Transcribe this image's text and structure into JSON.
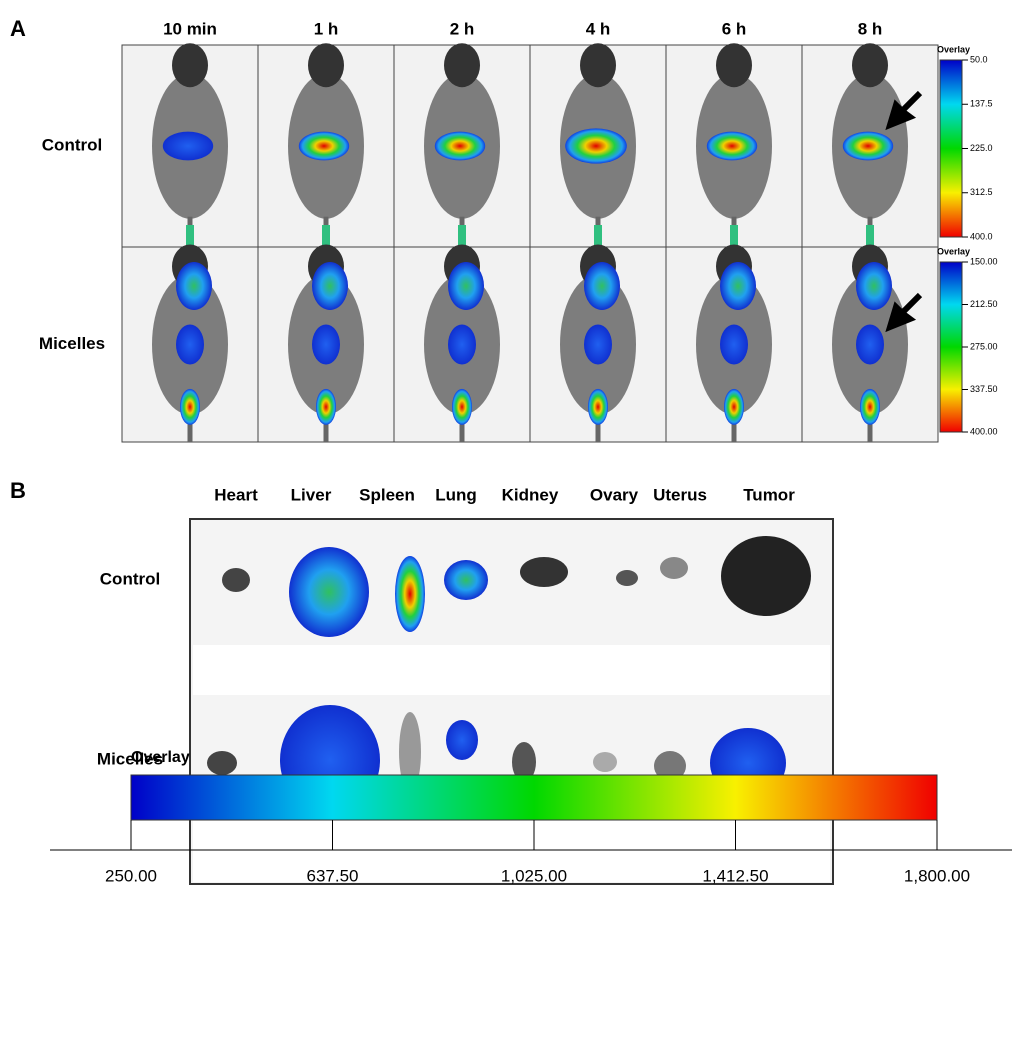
{
  "panel_a": {
    "label": "A",
    "columns": [
      "10 min",
      "1 h",
      "2 h",
      "4 h",
      "6 h",
      "8 h"
    ],
    "rows": [
      "Control",
      "Micelles"
    ],
    "scales": [
      {
        "title": "Overlay",
        "ticks": [
          "50.0",
          "137.5",
          "225.0",
          "312.5",
          "400.0"
        ]
      },
      {
        "title": "Overlay",
        "ticks": [
          "150.00",
          "212.50",
          "275.00",
          "337.50",
          "400.00"
        ]
      }
    ]
  },
  "panel_b": {
    "label": "B",
    "organs": [
      "Heart",
      "Liver",
      "Spleen",
      "Lung",
      "Kidney",
      "Ovary",
      "Uterus",
      "Tumor"
    ],
    "rows": [
      "Control",
      "Micelles"
    ],
    "scale": {
      "title": "Overlay",
      "ticks": [
        "250.00",
        "637.50",
        "1,025.00",
        "1,412.50",
        "1,800.00"
      ]
    }
  }
}
